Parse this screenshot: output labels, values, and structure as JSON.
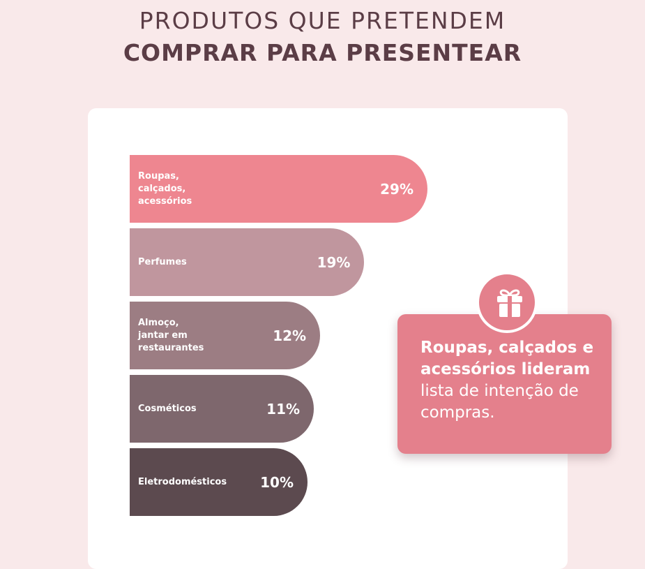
{
  "header": {
    "line1": "PRODUTOS QUE PRETENDEM",
    "line2": "COMPRAR PARA PRESENTEAR"
  },
  "colors": {
    "background": "#f9e9ea",
    "title": "#5b3d46",
    "callout": "#e4808c",
    "bars": [
      "#ee8690",
      "#c0969e",
      "#9c7d83",
      "#7e676d",
      "#5c4a4f"
    ]
  },
  "chart_data": {
    "type": "bar",
    "orientation": "horizontal",
    "categories": [
      "Roupas,\ncalçados,\nacessórios",
      "Perfumes",
      "Almoço,\njantar em\nrestaurantes",
      "Cosméticos",
      "Eletrodomésticos"
    ],
    "values": [
      29,
      19,
      12,
      11,
      10
    ],
    "value_labels": [
      "29%",
      "19%",
      "12%",
      "11%",
      "10%"
    ],
    "unit": "%"
  },
  "callout": {
    "bold_text": "Roupas, calçados e acessórios lideram",
    "regular_text": "lista de intenção de compras.",
    "icon": "gift-icon"
  }
}
